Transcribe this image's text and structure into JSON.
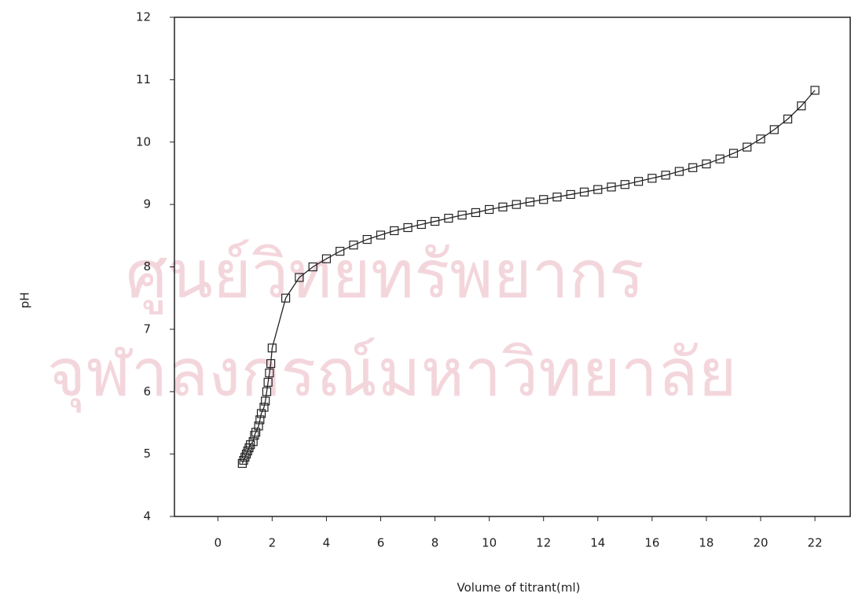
{
  "watermark": [
    "ศูนย์วิทยทรัพยากร",
    "จุฬาลงกรณ์มหาวิทยาลัย"
  ],
  "chart_data": {
    "type": "line",
    "x_label": "Volume of titrant(ml)",
    "y_label": "pH",
    "marker": "square",
    "color": "#222222",
    "x": [
      0.9,
      0.95,
      1.0,
      1.05,
      1.1,
      1.15,
      1.2,
      1.3,
      1.35,
      1.4,
      1.5,
      1.55,
      1.6,
      1.7,
      1.75,
      1.8,
      1.85,
      1.9,
      1.95,
      2.0,
      2.5,
      3.0,
      3.5,
      4.0,
      4.5,
      5.0,
      5.5,
      6.0,
      6.5,
      7.0,
      7.5,
      8.0,
      8.5,
      9.0,
      9.5,
      10,
      10.5,
      11,
      11.5,
      12,
      12.5,
      13,
      13.5,
      14,
      14.5,
      15,
      15.5,
      16,
      16.5,
      17,
      17.5,
      18,
      18.5,
      19,
      19.5,
      20,
      20.5,
      21,
      21.5,
      22
    ],
    "values": [
      4.85,
      4.9,
      4.95,
      5.0,
      5.05,
      5.1,
      5.15,
      5.2,
      5.3,
      5.35,
      5.45,
      5.55,
      5.65,
      5.75,
      5.85,
      6.0,
      6.15,
      6.3,
      6.45,
      6.7,
      7.5,
      7.83,
      8.0,
      8.13,
      8.25,
      8.35,
      8.44,
      8.51,
      8.58,
      8.63,
      8.68,
      8.73,
      8.78,
      8.83,
      8.87,
      8.92,
      8.96,
      9.0,
      9.04,
      9.08,
      9.12,
      9.16,
      9.2,
      9.24,
      9.28,
      9.32,
      9.37,
      9.42,
      9.47,
      9.53,
      9.59,
      9.65,
      9.73,
      9.82,
      9.92,
      10.05,
      10.2,
      10.37,
      10.58,
      10.83
    ],
    "xlim": [
      -1.6,
      23.3
    ],
    "ylim": [
      4,
      12
    ],
    "xticks": [
      0,
      2,
      4,
      6,
      8,
      10,
      12,
      14,
      16,
      18,
      20,
      22
    ],
    "yticks": [
      4,
      5,
      6,
      7,
      8,
      9,
      10,
      11,
      12
    ]
  }
}
